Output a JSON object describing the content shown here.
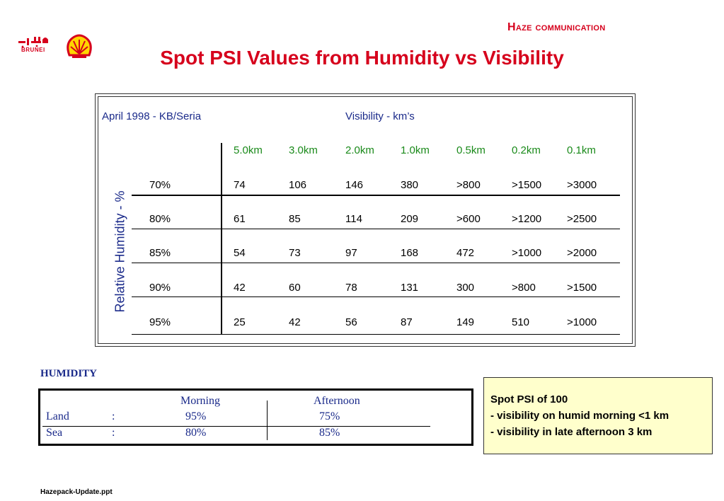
{
  "header": {
    "logo_text": "BRUNEI",
    "section_title": "Haze  communication",
    "title": "Spot PSI Values from Humidity vs Visibility"
  },
  "psi_table": {
    "caption": "April 1998 - KB/Seria",
    "visibility_label": "Visibility - km’s",
    "humidity_axis_label": "Relative Humidity - %",
    "columns": [
      "5.0km",
      "3.0km",
      "2.0km",
      "1.0km",
      "0.5km",
      "0.2km",
      "0.1km"
    ],
    "rows": [
      {
        "humidity": "70%",
        "values": [
          "74",
          "106",
          "146",
          "380",
          ">800",
          ">1500",
          ">3000"
        ]
      },
      {
        "humidity": "80%",
        "values": [
          "61",
          "85",
          "114",
          "209",
          ">600",
          ">1200",
          ">2500"
        ]
      },
      {
        "humidity": "85%",
        "values": [
          "54",
          "73",
          "97",
          "168",
          "472",
          ">1000",
          ">2000"
        ]
      },
      {
        "humidity": "90%",
        "values": [
          "42",
          "60",
          "78",
          "131",
          "300",
          ">800",
          ">1500"
        ]
      },
      {
        "humidity": "95%",
        "values": [
          "25",
          "42",
          "56",
          "87",
          "149",
          "510",
          ">1000"
        ]
      }
    ]
  },
  "humidity": {
    "title": "HUMIDITY",
    "headers": {
      "morning": "Morning",
      "afternoon": "Afternoon"
    },
    "rows": [
      {
        "label": "Land",
        "sep": ":",
        "morning": "95%",
        "afternoon": "75%"
      },
      {
        "label": "Sea",
        "sep": ":",
        "morning": "80%",
        "afternoon": "85%"
      }
    ]
  },
  "note": {
    "lines": [
      "Spot PSI of 100",
      "- visibility on humid morning <1 km",
      "- visibility in late afternoon 3 km"
    ]
  },
  "footer": "Hazepack-Update.ppt",
  "colors": {
    "title_red": "#d6001c",
    "text_blue": "#1a2a8a",
    "header_green": "#1a8a1a",
    "note_bg": "#ffffcc",
    "shell_yellow": "#ffd500"
  }
}
